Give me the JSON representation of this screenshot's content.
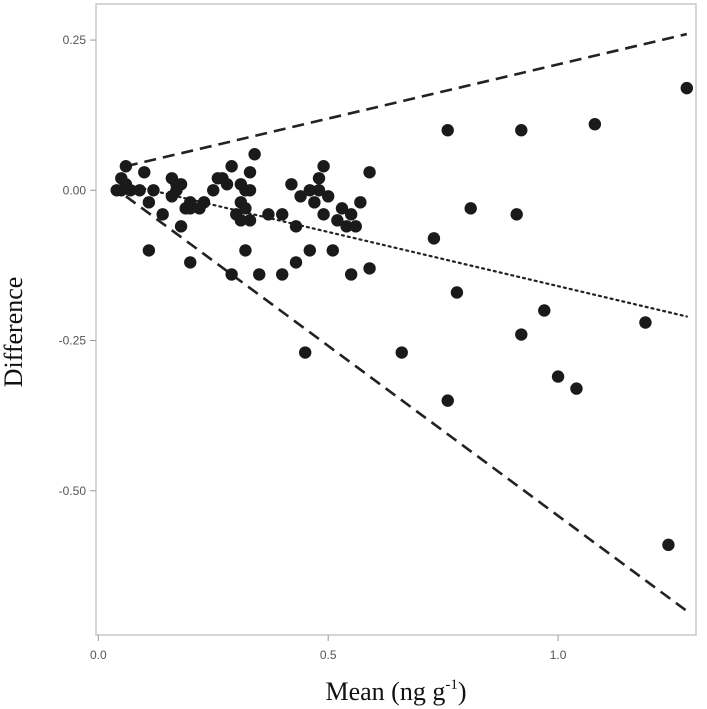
{
  "chart_data": {
    "type": "scatter",
    "title": "",
    "xlabel": "Mean (ng g",
    "xlabel_superscript": "-1",
    "xlabel_suffix": ")",
    "ylabel": "Difference",
    "xlim": [
      -0.005,
      1.3
    ],
    "ylim": [
      -0.74,
      0.31
    ],
    "x_ticks": [
      0.0,
      0.5,
      1.0
    ],
    "x_tick_labels": [
      "0.0",
      "0.5",
      "1.0"
    ],
    "y_ticks": [
      0.25,
      0.0,
      -0.25,
      -0.5
    ],
    "y_tick_labels": [
      "0.25",
      "0.00",
      "-0.25",
      "-0.50"
    ],
    "grid": false,
    "point_color": "#1a1a1a",
    "line_color": "#222222",
    "series": [
      {
        "kind": "points",
        "x": [
          0.04,
          0.05,
          0.05,
          0.06,
          0.06,
          0.07,
          0.09,
          0.1,
          0.11,
          0.11,
          0.12,
          0.14,
          0.16,
          0.16,
          0.17,
          0.17,
          0.18,
          0.18,
          0.19,
          0.2,
          0.2,
          0.2,
          0.22,
          0.23,
          0.25,
          0.26,
          0.27,
          0.28,
          0.29,
          0.29,
          0.3,
          0.31,
          0.31,
          0.31,
          0.32,
          0.32,
          0.32,
          0.33,
          0.33,
          0.33,
          0.34,
          0.35,
          0.37,
          0.4,
          0.4,
          0.42,
          0.43,
          0.43,
          0.44,
          0.46,
          0.46,
          0.47,
          0.48,
          0.49,
          0.49,
          0.5,
          0.51,
          0.52,
          0.53,
          0.54,
          0.55,
          0.55,
          0.56,
          0.57,
          0.59,
          0.59,
          0.66,
          0.73,
          0.76,
          0.76,
          0.78,
          0.81,
          0.91,
          0.92,
          0.92,
          0.97,
          1.0,
          1.04,
          1.08,
          1.19,
          1.24,
          1.28,
          0.45,
          0.48
        ],
        "y": [
          0.0,
          0.02,
          0.0,
          0.04,
          0.01,
          0.0,
          0.0,
          0.03,
          -0.02,
          -0.1,
          0.0,
          -0.04,
          0.02,
          -0.01,
          0.0,
          0.01,
          -0.06,
          0.01,
          -0.03,
          -0.02,
          -0.12,
          -0.03,
          -0.03,
          -0.02,
          0.0,
          0.02,
          0.02,
          0.01,
          0.04,
          -0.14,
          -0.04,
          0.01,
          -0.02,
          -0.05,
          -0.1,
          0.0,
          -0.03,
          0.03,
          0.0,
          -0.05,
          0.06,
          -0.14,
          -0.04,
          -0.14,
          -0.04,
          0.01,
          -0.12,
          -0.06,
          -0.01,
          -0.1,
          0.0,
          -0.02,
          0.02,
          0.04,
          -0.04,
          -0.01,
          -0.1,
          -0.05,
          -0.03,
          -0.06,
          -0.14,
          -0.04,
          -0.06,
          -0.02,
          -0.13,
          0.03,
          -0.27,
          -0.08,
          -0.35,
          0.1,
          -0.17,
          -0.03,
          -0.04,
          -0.24,
          0.1,
          -0.2,
          -0.31,
          -0.33,
          0.11,
          -0.22,
          -0.59,
          0.17,
          -0.27,
          0.0
        ]
      },
      {
        "kind": "line",
        "style": "dashed",
        "x": [
          0.06,
          1.28
        ],
        "y": [
          0.04,
          0.26
        ]
      },
      {
        "kind": "line",
        "style": "dotted",
        "x": [
          0.06,
          1.28
        ],
        "y": [
          0.01,
          -0.21
        ]
      },
      {
        "kind": "line",
        "style": "dashed",
        "x": [
          0.06,
          1.28
        ],
        "y": [
          -0.01,
          -0.7
        ]
      }
    ]
  }
}
